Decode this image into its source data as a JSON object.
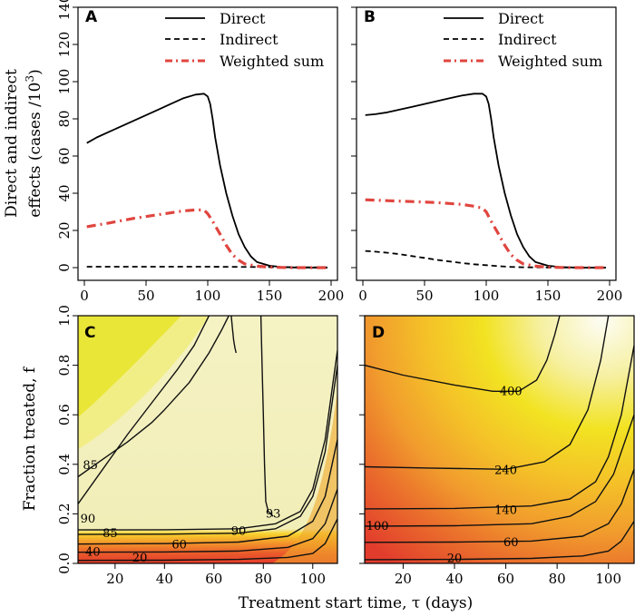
{
  "chart_data": [
    {
      "panel": "A",
      "type": "line",
      "ylabel_line1": "Direct and indirect",
      "ylabel_line2": "effects (cases /10",
      "ylabel_sup": "3",
      "ylabel_close": ")",
      "xlim": [
        0,
        200
      ],
      "ylim": [
        0,
        140
      ],
      "xticks": [
        0,
        50,
        100,
        150,
        200
      ],
      "yticks": [
        0,
        20,
        40,
        60,
        80,
        100,
        120,
        140
      ],
      "legend": [
        "Direct",
        "Indirect",
        "Weighted sum"
      ],
      "series": [
        {
          "name": "Direct",
          "color": "#000000",
          "dash": "solid",
          "x": [
            2,
            10,
            20,
            30,
            40,
            50,
            60,
            70,
            80,
            90,
            97,
            100,
            102,
            104,
            106,
            110,
            115,
            120,
            125,
            130,
            135,
            140,
            150,
            160,
            170,
            180,
            190,
            197
          ],
          "y": [
            67,
            70,
            73,
            76,
            79,
            82,
            85,
            88,
            91,
            93,
            93.5,
            92,
            88,
            80,
            70,
            55,
            40,
            28,
            18,
            11,
            6,
            3,
            1,
            0.3,
            0.1,
            0,
            0,
            0
          ]
        },
        {
          "name": "Indirect",
          "color": "#000000",
          "dash": "dashed",
          "x": [
            2,
            50,
            100,
            150,
            197
          ],
          "y": [
            0.5,
            0.5,
            0.5,
            0.3,
            0.1
          ]
        },
        {
          "name": "Weighted sum",
          "color": "#e0453f",
          "dash": "dashdot",
          "x": [
            2,
            20,
            40,
            60,
            80,
            90,
            97,
            100,
            104,
            110,
            115,
            120,
            125,
            130,
            140,
            150,
            160,
            170,
            180,
            190,
            197
          ],
          "y": [
            22,
            24,
            26.5,
            28.5,
            30.5,
            31,
            31,
            29,
            25,
            18,
            12,
            7,
            4,
            2,
            0.8,
            0.3,
            0.1,
            0,
            0,
            0,
            0
          ]
        }
      ]
    },
    {
      "panel": "B",
      "type": "line",
      "xlim": [
        0,
        200
      ],
      "ylim": [
        0,
        140
      ],
      "xticks": [
        0,
        50,
        100,
        150,
        200
      ],
      "legend": [
        "Direct",
        "Indirect",
        "Weighted sum"
      ],
      "series": [
        {
          "name": "Direct",
          "color": "#000000",
          "dash": "solid",
          "x": [
            2,
            10,
            20,
            30,
            40,
            50,
            60,
            70,
            80,
            90,
            97,
            100,
            102,
            104,
            106,
            110,
            115,
            120,
            125,
            130,
            135,
            140,
            150,
            160,
            170,
            180,
            190,
            197
          ],
          "y": [
            82,
            82.5,
            83.5,
            85,
            86.5,
            88,
            89.5,
            91,
            92.5,
            93.5,
            93.5,
            92,
            88,
            80,
            70,
            55,
            40,
            28,
            18,
            11,
            6,
            3,
            1,
            0.3,
            0.1,
            0,
            0,
            0
          ]
        },
        {
          "name": "Indirect",
          "color": "#000000",
          "dash": "dashed",
          "x": [
            2,
            10,
            20,
            30,
            40,
            50,
            60,
            70,
            80,
            90,
            100,
            110,
            120,
            130,
            150,
            197
          ],
          "y": [
            9,
            8.6,
            8,
            7.2,
            6.2,
            5.2,
            4.2,
            3.3,
            2.5,
            1.8,
            1.3,
            0.8,
            0.4,
            0.2,
            0.1,
            0
          ]
        },
        {
          "name": "Weighted sum",
          "color": "#e0453f",
          "dash": "dashdot",
          "x": [
            2,
            20,
            40,
            60,
            80,
            90,
            97,
            100,
            104,
            110,
            115,
            120,
            125,
            130,
            140,
            150,
            160,
            170,
            180,
            190,
            197
          ],
          "y": [
            36.5,
            36,
            35.5,
            35,
            34,
            33,
            32,
            30,
            25,
            18,
            12,
            7,
            4,
            2,
            0.8,
            0.3,
            0.1,
            0,
            0,
            0,
            0
          ]
        }
      ]
    },
    {
      "panel": "C",
      "type": "heatmap",
      "ylabel": "Fraction treated, f",
      "xlim": [
        5,
        110
      ],
      "ylim": [
        0,
        1
      ],
      "xticks": [
        20,
        40,
        60,
        80,
        100
      ],
      "yticks": [
        0.0,
        0.2,
        0.4,
        0.6,
        0.8,
        1.0
      ],
      "contour_labels": [
        {
          "text": "85",
          "x": 10,
          "y": 0.395
        },
        {
          "text": "90",
          "x": 9,
          "y": 0.18
        },
        {
          "text": "85",
          "x": 18,
          "y": 0.12
        },
        {
          "text": "90",
          "x": 70,
          "y": 0.13
        },
        {
          "text": "93",
          "x": 84,
          "y": 0.2
        },
        {
          "text": "60",
          "x": 46,
          "y": 0.075
        },
        {
          "text": "40",
          "x": 11,
          "y": 0.045
        },
        {
          "text": "20",
          "x": 30,
          "y": 0.022
        }
      ],
      "contour_lines": [
        {
          "level": 20,
          "x": [
            5,
            40,
            70,
            90,
            100,
            105,
            110
          ],
          "y": [
            0.012,
            0.013,
            0.016,
            0.024,
            0.04,
            0.08,
            0.18
          ]
        },
        {
          "level": 40,
          "x": [
            5,
            40,
            70,
            90,
            100,
            105,
            110
          ],
          "y": [
            0.045,
            0.046,
            0.05,
            0.065,
            0.1,
            0.16,
            0.3
          ]
        },
        {
          "level": 60,
          "x": [
            5,
            40,
            70,
            90,
            100,
            105,
            110
          ],
          "y": [
            0.078,
            0.08,
            0.086,
            0.11,
            0.17,
            0.27,
            0.5
          ]
        },
        {
          "level": 85,
          "x": [
            5,
            40,
            70,
            85,
            95,
            100,
            105,
            110
          ],
          "y": [
            0.117,
            0.118,
            0.122,
            0.14,
            0.19,
            0.27,
            0.45,
            0.8
          ]
        },
        {
          "level": 90,
          "x": [
            5,
            40,
            70,
            85,
            95,
            100,
            105,
            110
          ],
          "y": [
            0.135,
            0.136,
            0.14,
            0.16,
            0.21,
            0.3,
            0.5,
            0.86
          ]
        },
        {
          "level": 90,
          "x": [
            5,
            15,
            25,
            35,
            45,
            52,
            56,
            58
          ],
          "y": [
            0.24,
            0.38,
            0.52,
            0.65,
            0.78,
            0.88,
            0.96,
            1.0
          ]
        },
        {
          "level": 85,
          "x": [
            5,
            15,
            25,
            35,
            40,
            50,
            58,
            63,
            66
          ],
          "y": [
            0.35,
            0.42,
            0.49,
            0.57,
            0.62,
            0.73,
            0.85,
            0.94,
            1.0
          ]
        },
        {
          "level": 93,
          "x": [
            79,
            79.5,
            80,
            80.5,
            81,
            82,
            84
          ],
          "y": [
            1.0,
            0.8,
            0.6,
            0.4,
            0.25,
            0.21,
            0.19
          ]
        },
        {
          "level": 90,
          "x": [
            67,
            67.5,
            68,
            68.5,
            69
          ],
          "y": [
            1.0,
            0.95,
            0.9,
            0.87,
            0.85
          ]
        }
      ]
    },
    {
      "panel": "D",
      "type": "heatmap",
      "xlim": [
        5,
        110
      ],
      "ylim": [
        0,
        1
      ],
      "xticks": [
        20,
        40,
        60,
        80,
        100
      ],
      "contour_labels": [
        {
          "text": "400",
          "x": 62,
          "y": 0.695
        },
        {
          "text": "240",
          "x": 60,
          "y": 0.375
        },
        {
          "text": "140",
          "x": 60,
          "y": 0.215
        },
        {
          "text": "100",
          "x": 10,
          "y": 0.15
        },
        {
          "text": "60",
          "x": 62,
          "y": 0.085
        },
        {
          "text": "20",
          "x": 40,
          "y": 0.02
        }
      ],
      "contour_lines": [
        {
          "level": 20,
          "x": [
            5,
            40,
            70,
            90,
            100,
            105,
            110
          ],
          "y": [
            0.015,
            0.016,
            0.02,
            0.03,
            0.05,
            0.09,
            0.17
          ]
        },
        {
          "level": 60,
          "x": [
            5,
            40,
            70,
            90,
            100,
            105,
            110
          ],
          "y": [
            0.085,
            0.086,
            0.09,
            0.11,
            0.16,
            0.24,
            0.38
          ]
        },
        {
          "level": 100,
          "x": [
            5,
            40,
            70,
            85,
            95,
            102,
            110
          ],
          "y": [
            0.15,
            0.152,
            0.16,
            0.19,
            0.25,
            0.36,
            0.6
          ]
        },
        {
          "level": 140,
          "x": [
            5,
            40,
            70,
            85,
            95,
            100,
            105,
            110
          ],
          "y": [
            0.22,
            0.222,
            0.232,
            0.26,
            0.33,
            0.43,
            0.6,
            0.88
          ]
        },
        {
          "level": 240,
          "x": [
            5,
            30,
            60,
            75,
            85,
            92,
            97,
            100
          ],
          "y": [
            0.39,
            0.385,
            0.38,
            0.41,
            0.48,
            0.62,
            0.82,
            1.0
          ]
        },
        {
          "level": 400,
          "x": [
            5,
            20,
            40,
            55,
            65,
            72,
            76,
            79,
            81
          ],
          "y": [
            0.8,
            0.76,
            0.72,
            0.695,
            0.695,
            0.74,
            0.82,
            0.92,
            1.0
          ]
        }
      ]
    }
  ],
  "shared": {
    "xlabel_C_D": "Treatment start time, τ (days)"
  }
}
